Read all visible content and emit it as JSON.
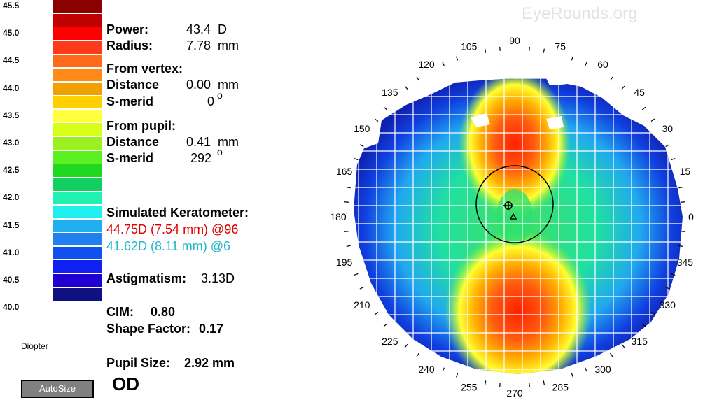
{
  "watermark": "EyeRounds.org",
  "scale": {
    "unit_label": "Diopter",
    "labels": [
      "45.5",
      "45.0",
      "44.5",
      "44.0",
      "43.5",
      "43.0",
      "42.5",
      "42.0",
      "41.5",
      "41.0",
      "40.5",
      "40.0"
    ],
    "colors": [
      "#8b0000",
      "#c00000",
      "#ff0000",
      "#ff3a1a",
      "#ff6a1a",
      "#ff8a1a",
      "#f0a000",
      "#ffd000",
      "#ffff40",
      "#d8ff1a",
      "#9cf020",
      "#5cf020",
      "#20d820",
      "#10d060",
      "#20f0b0",
      "#20f0f0",
      "#20b0f0",
      "#2080f0",
      "#1050f0",
      "#1020f0",
      "#2000d0",
      "#101080"
    ]
  },
  "autosize_label": "AutoSize",
  "readout": {
    "power_label": "Power:",
    "power_value": "43.4",
    "power_unit": "D",
    "radius_label": "Radius:",
    "radius_value": "7.78",
    "radius_unit": "mm",
    "vertex_heading": "From vertex:",
    "vertex_distance_label": "Distance",
    "vertex_distance_value": "0.00",
    "vertex_distance_unit": "mm",
    "vertex_smerid_label": "S-merid",
    "vertex_smerid_value": "0",
    "pupil_heading": "From pupil:",
    "pupil_distance_label": "Distance",
    "pupil_distance_value": "0.41",
    "pupil_distance_unit": "mm",
    "pupil_smerid_label": "S-merid",
    "pupil_smerid_value": "292",
    "degree_symbol": "o",
    "sim_k_heading": "Simulated Keratometer:",
    "sim_k_steep": "44.75D (7.54 mm) @96",
    "sim_k_flat": "41.62D (8.11 mm) @6",
    "astig_label": "Astigmatism:",
    "astig_value": "3.13D",
    "cim_label": "CIM:",
    "cim_value": "0.80",
    "shape_label": "Shape Factor:",
    "shape_value": "0.17",
    "pupil_size_label": "Pupil Size:",
    "pupil_size_value": "2.92 mm",
    "eye": "OD"
  },
  "colors": {
    "steep_k": "#e00000",
    "flat_k": "#20b8c8"
  },
  "map": {
    "axis_degrees": [
      "0",
      "15",
      "30",
      "45",
      "60",
      "75",
      "90",
      "105",
      "120",
      "135",
      "150",
      "165",
      "180",
      "195",
      "210",
      "225",
      "240",
      "255",
      "270",
      "285",
      "300",
      "315",
      "330",
      "345"
    ]
  }
}
